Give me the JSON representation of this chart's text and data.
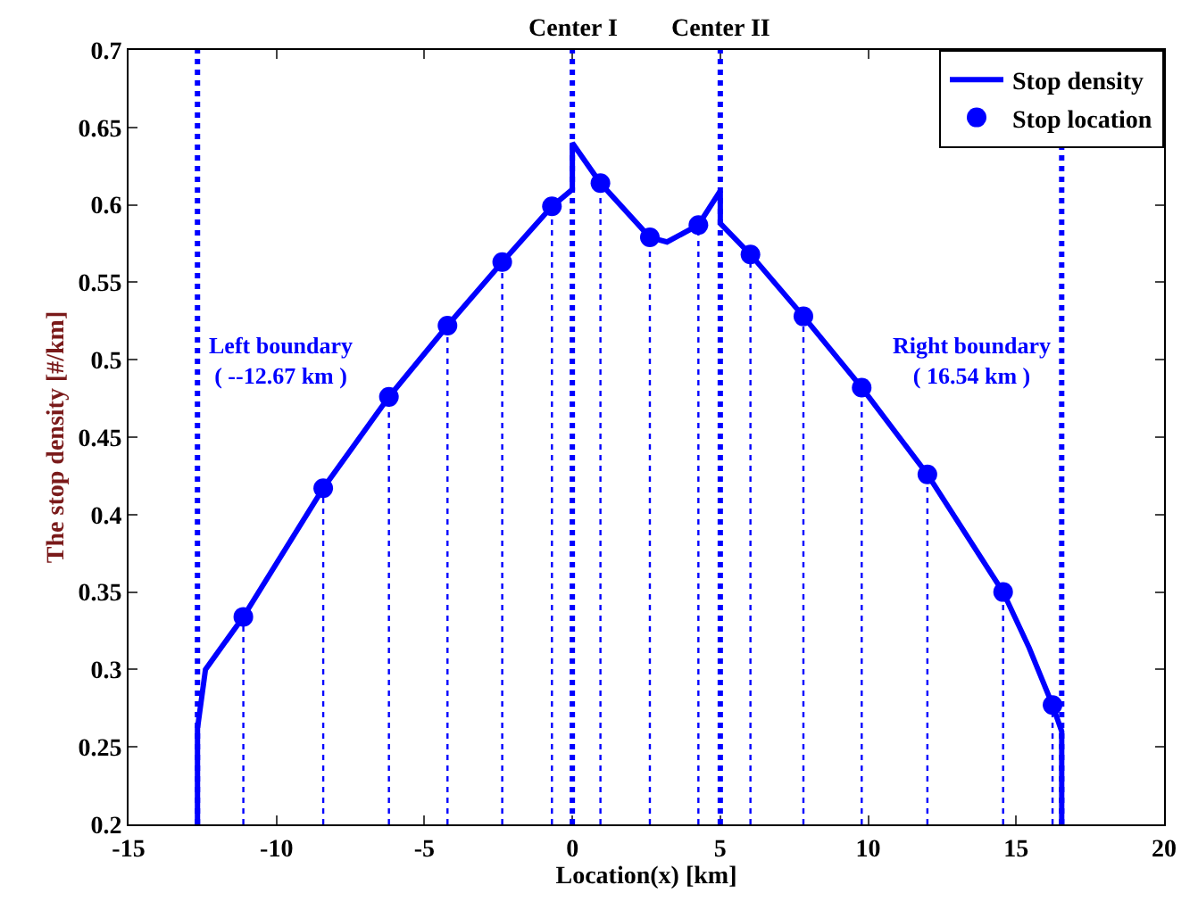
{
  "chart_data": {
    "type": "line",
    "xlabel": "Location(x) [km]",
    "ylabel": "The stop density [#/km]",
    "xlim": [
      -15,
      20
    ],
    "xticks": [
      -15,
      -10,
      -5,
      0,
      5,
      10,
      15,
      20
    ],
    "ylim": [
      0.2,
      0.7
    ],
    "yticks": [
      0.2,
      0.25,
      0.3,
      0.35,
      0.4,
      0.45,
      0.5,
      0.55,
      0.6,
      0.65,
      0.7
    ],
    "legend": "top right",
    "series": [
      {
        "name": "Stop density",
        "color": "#0000ff",
        "marker": "none",
        "line_style": "solid",
        "x": [
          -12.67,
          -12.67,
          -12.4,
          -11.12,
          -8.42,
          -6.2,
          -4.22,
          -2.37,
          -0.69,
          0,
          0,
          0.95,
          2.62,
          3.2,
          4.26,
          5,
          5,
          6.02,
          7.81,
          9.78,
          12.0,
          14.56,
          15.44,
          16.23,
          16.54,
          16.54
        ],
        "values": [
          0.2,
          0.262,
          0.3,
          0.334,
          0.417,
          0.476,
          0.522,
          0.563,
          0.599,
          0.61,
          0.64,
          0.614,
          0.579,
          0.576,
          0.587,
          0.609,
          0.588,
          0.568,
          0.528,
          0.482,
          0.426,
          0.35,
          0.314,
          0.277,
          0.26,
          0.2
        ]
      },
      {
        "name": "Stop location",
        "type": "lollipop",
        "color": "#0000ff",
        "marker": "circle",
        "line_style": "dotted",
        "x": [
          -11.12,
          -8.42,
          -6.2,
          -4.22,
          -2.37,
          -0.69,
          0.95,
          2.62,
          4.26,
          6.02,
          7.81,
          9.78,
          12.0,
          14.56,
          16.23
        ],
        "values": [
          0.334,
          0.417,
          0.476,
          0.522,
          0.563,
          0.599,
          0.614,
          0.579,
          0.587,
          0.568,
          0.528,
          0.482,
          0.426,
          0.35,
          0.277
        ]
      }
    ],
    "ref_lines": [
      {
        "axis": "x",
        "value": -12.67,
        "label": "Left boundary\n( --12.67 km )",
        "color": "#0000ff",
        "line_style": "dotted"
      },
      {
        "axis": "x",
        "value": 0,
        "label": "Center I",
        "color": "#0000ff",
        "line_style": "dotted"
      },
      {
        "axis": "x",
        "value": 5,
        "label": "Center II",
        "color": "#0000ff",
        "line_style": "dotted"
      },
      {
        "axis": "x",
        "value": 16.54,
        "label": "Right boundary\n( 16.54 km )",
        "color": "#0000ff",
        "line_style": "dotted"
      }
    ]
  }
}
